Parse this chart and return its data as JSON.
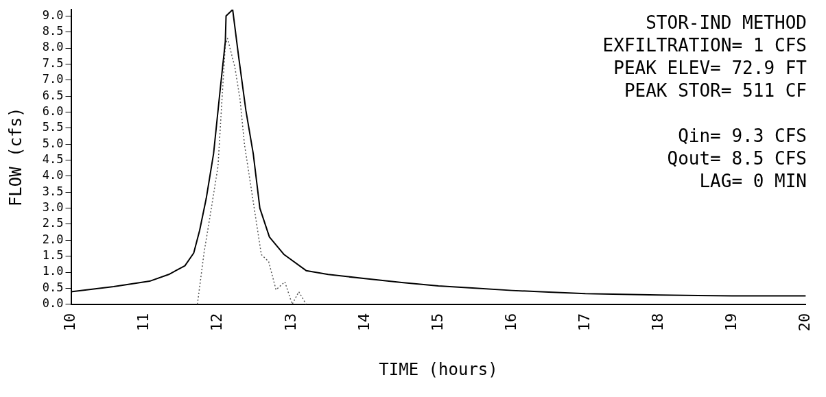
{
  "chart_data": {
    "type": "line",
    "xlabel": "TIME (hours)",
    "ylabel": "FLOW (cfs)",
    "xlim": [
      10,
      20
    ],
    "xticks": [
      10,
      11,
      12,
      13,
      14,
      15,
      16,
      17,
      18,
      19,
      20
    ],
    "ylim": [
      0,
      9.2
    ],
    "yticks": [
      {
        "value": 0,
        "label": "0.0"
      },
      {
        "value": 0.5,
        "label": "0.5"
      },
      {
        "value": 1,
        "label": "1.0"
      },
      {
        "value": 1.5,
        "label": "1.5"
      },
      {
        "value": 2,
        "label": "2.0"
      },
      {
        "value": 2.5,
        "label": "2.5"
      },
      {
        "value": 3,
        "label": "3.0"
      },
      {
        "value": 3.5,
        "label": "3.5"
      },
      {
        "value": 4,
        "label": "4.0"
      },
      {
        "value": 4.5,
        "label": "4.5"
      },
      {
        "value": 5,
        "label": "5.0"
      },
      {
        "value": 5.5,
        "label": "5.5"
      },
      {
        "value": 6,
        "label": "6.0"
      },
      {
        "value": 6.5,
        "label": "6.5"
      },
      {
        "value": 7,
        "label": "7.0"
      },
      {
        "value": 7.5,
        "label": "7.5"
      },
      {
        "value": 8,
        "label": "8.0"
      },
      {
        "value": 8.5,
        "label": "8.5"
      },
      {
        "value": 9,
        "label": "9.0"
      }
    ],
    "grid": false,
    "legend": false,
    "marker": "none",
    "annotations": [
      "STOR-IND METHOD\nEXFILTRATION= 1 CFS\nPEAK ELEV= 72.9 FT\nPEAK STOR= 511 CF",
      "Qin= 9.3 CFS\nQout= 8.5 CFS\nLAG= 0 MIN"
    ],
    "series": [
      {
        "color": "#000000",
        "line_style": "solid",
        "x": [
          10,
          10.58,
          11.07,
          11.33,
          11.55,
          11.67,
          11.75,
          11.84,
          11.94,
          12.03,
          12.1,
          12.11,
          12.2,
          12.28,
          12.38,
          12.48,
          12.57,
          12.7,
          12.9,
          13.2,
          13.5,
          14,
          14.5,
          15,
          15.5,
          16,
          16.5,
          17,
          18,
          19,
          20
        ],
        "values": [
          0.39,
          0.55,
          0.72,
          0.93,
          1.2,
          1.6,
          2.3,
          3.3,
          4.7,
          6.7,
          8.2,
          9.0,
          9.2,
          7.75,
          6.05,
          4.7,
          3.0,
          2.1,
          1.55,
          1.05,
          0.93,
          0.8,
          0.68,
          0.57,
          0.5,
          0.43,
          0.38,
          0.33,
          0.29,
          0.26,
          0.26
        ]
      },
      {
        "color": "#555555",
        "line_style": "dotted",
        "x": [
          11.72,
          11.81,
          11.91,
          12.0,
          12.06,
          12.1,
          12.13,
          12.23,
          12.3,
          12.36,
          12.46,
          12.54,
          12.59,
          12.69,
          12.79,
          12.91,
          13.01,
          13.1,
          13.2
        ],
        "values": [
          0,
          1.6,
          3.0,
          4.3,
          6.6,
          8.1,
          8.3,
          7.4,
          6.4,
          5.0,
          3.5,
          2.3,
          1.55,
          1.33,
          0.45,
          0.7,
          0,
          0.39,
          0
        ]
      }
    ]
  }
}
